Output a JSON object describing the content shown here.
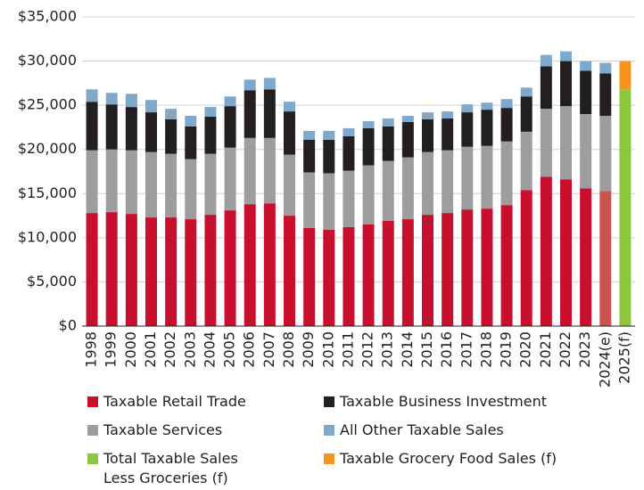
{
  "chart_data": {
    "type": "stacked_bar",
    "categories": [
      "1998",
      "1999",
      "2000",
      "2001",
      "2002",
      "2003",
      "2004",
      "2005",
      "2006",
      "2007",
      "2008",
      "2009",
      "2010",
      "2011",
      "2012",
      "2013",
      "2014",
      "2015",
      "2016",
      "2017",
      "2018",
      "2019",
      "2020",
      "2021",
      "2022",
      "2023",
      "2024(e)",
      "2025(f)"
    ],
    "series": [
      {
        "name": "Taxable Retail Trade",
        "color": "#c8102e",
        "colors": [
          "#c8102e",
          "#c8102e",
          "#c8102e",
          "#c8102e",
          "#c8102e",
          "#c8102e",
          "#c8102e",
          "#c8102e",
          "#c8102e",
          "#c8102e",
          "#c8102e",
          "#c8102e",
          "#c8102e",
          "#c8102e",
          "#c8102e",
          "#c8102e",
          "#c8102e",
          "#c8102e",
          "#c8102e",
          "#c8102e",
          "#c8102e",
          "#c8102e",
          "#c8102e",
          "#c8102e",
          "#c8102e",
          "#c8102e",
          "#c8534f",
          "#c8102e"
        ],
        "values": [
          12800,
          12900,
          12700,
          12300,
          12300,
          12100,
          12600,
          13100,
          13800,
          13900,
          12500,
          11100,
          10900,
          11200,
          11500,
          11900,
          12100,
          12600,
          12800,
          13200,
          13300,
          13700,
          15400,
          16900,
          16600,
          15600,
          15300,
          null
        ]
      },
      {
        "name": "Taxable Services",
        "color": "#9d9d9f",
        "values": [
          7100,
          7100,
          7200,
          7400,
          7200,
          6800,
          6900,
          7100,
          7500,
          7400,
          6900,
          6300,
          6400,
          6400,
          6700,
          6800,
          7000,
          7100,
          7100,
          7100,
          7100,
          7200,
          6600,
          7700,
          8300,
          8400,
          8500,
          null
        ]
      },
      {
        "name": "Taxable Business Investment",
        "color": "#231f20",
        "values": [
          5500,
          5100,
          4900,
          4500,
          3900,
          3700,
          4200,
          4700,
          5400,
          5500,
          4900,
          3700,
          3800,
          3900,
          4200,
          3900,
          4000,
          3700,
          3600,
          3900,
          4100,
          3800,
          4000,
          4800,
          5100,
          4900,
          4800,
          null
        ]
      },
      {
        "name": "All Other Taxable Sales",
        "color": "#7ea8cc",
        "values": [
          1400,
          1300,
          1500,
          1400,
          1200,
          1200,
          1100,
          1100,
          1200,
          1300,
          1100,
          1000,
          1000,
          900,
          800,
          900,
          700,
          800,
          800,
          900,
          800,
          1000,
          1000,
          1300,
          1100,
          1100,
          1200,
          null
        ]
      },
      {
        "name": "Total Taxable Sales Less Groceries (f)",
        "color": "#8dc63f",
        "values": [
          null,
          null,
          null,
          null,
          null,
          null,
          null,
          null,
          null,
          null,
          null,
          null,
          null,
          null,
          null,
          null,
          null,
          null,
          null,
          null,
          null,
          null,
          null,
          null,
          null,
          null,
          null,
          26800
        ]
      },
      {
        "name": "Taxable Grocery Food Sales (f)",
        "color": "#f7941d",
        "values": [
          null,
          null,
          null,
          null,
          null,
          null,
          null,
          null,
          null,
          null,
          null,
          null,
          null,
          null,
          null,
          null,
          null,
          null,
          null,
          null,
          null,
          null,
          null,
          null,
          null,
          null,
          null,
          3200
        ]
      }
    ],
    "ylim": [
      0,
      35000
    ],
    "yticks": [
      {
        "value": 0,
        "label": "$0"
      },
      {
        "value": 5000,
        "label": "$5,000"
      },
      {
        "value": 10000,
        "label": "$10,000"
      },
      {
        "value": 15000,
        "label": "$15,000"
      },
      {
        "value": 20000,
        "label": "$20,000"
      },
      {
        "value": 25000,
        "label": "$25,000"
      },
      {
        "value": 30000,
        "label": "$30,000"
      },
      {
        "value": 35000,
        "label": "$35,000"
      }
    ],
    "grid": true
  }
}
